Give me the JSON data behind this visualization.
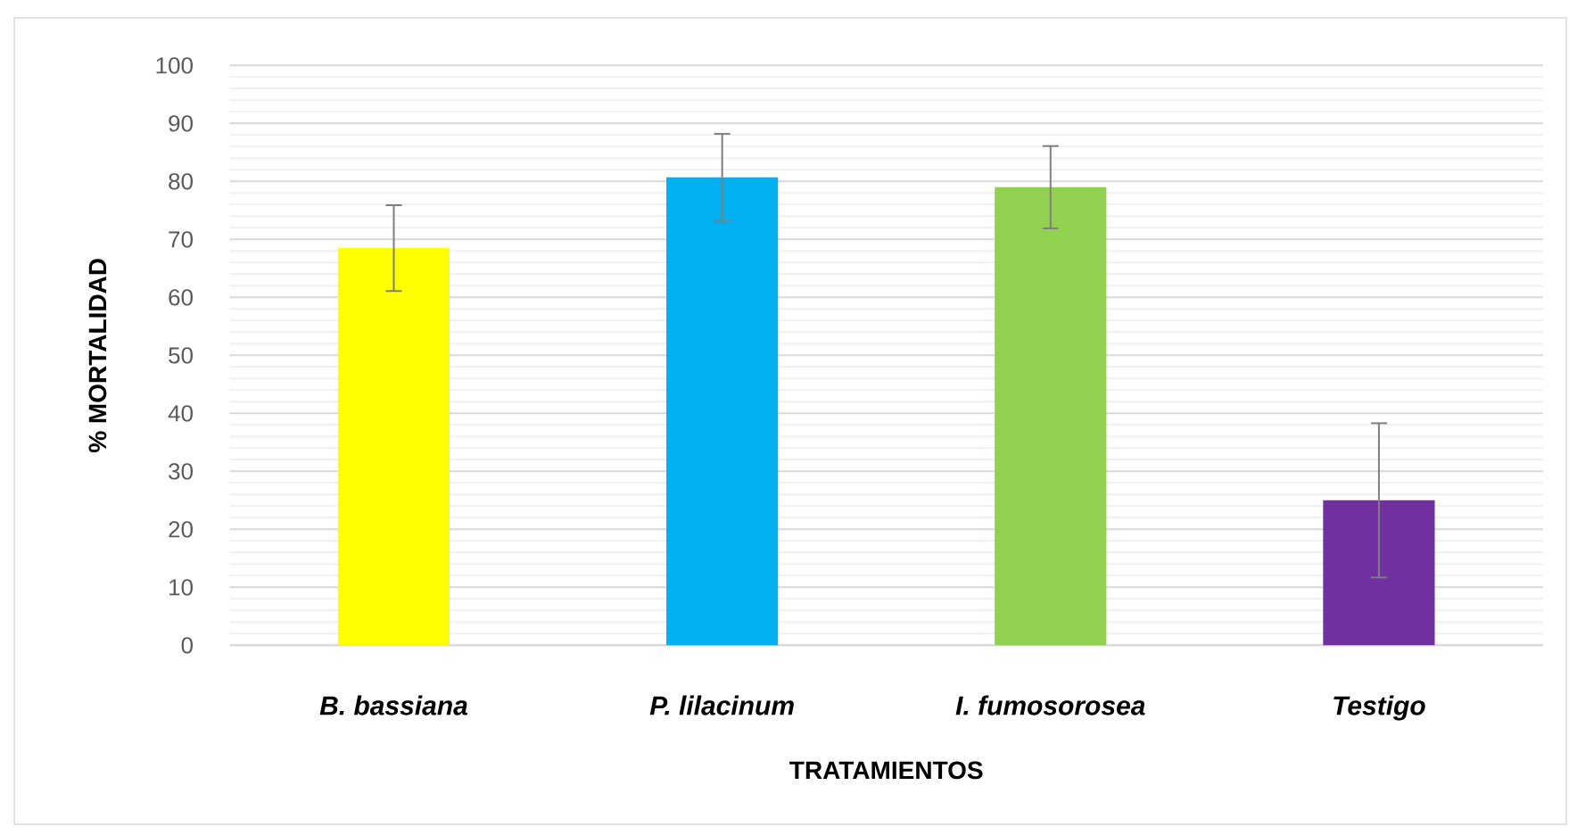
{
  "chart_data": {
    "type": "bar",
    "xlabel": "TRATAMIENTOS",
    "ylabel": "% MORTALIDAD",
    "categories": [
      "B. bassiana",
      "P. lilacinum",
      "I. fumosorosea",
      "Testigo"
    ],
    "values": [
      68.5,
      80.7,
      79.0,
      25.0
    ],
    "errors": [
      7.4,
      7.5,
      7.1,
      13.3
    ],
    "colors": [
      "#ffff00",
      "#00b0f0",
      "#92d050",
      "#7030a0"
    ],
    "ylim": [
      0,
      100
    ],
    "yticks": [
      0,
      10,
      20,
      30,
      40,
      50,
      60,
      70,
      80,
      90,
      100
    ],
    "grid": "y"
  }
}
